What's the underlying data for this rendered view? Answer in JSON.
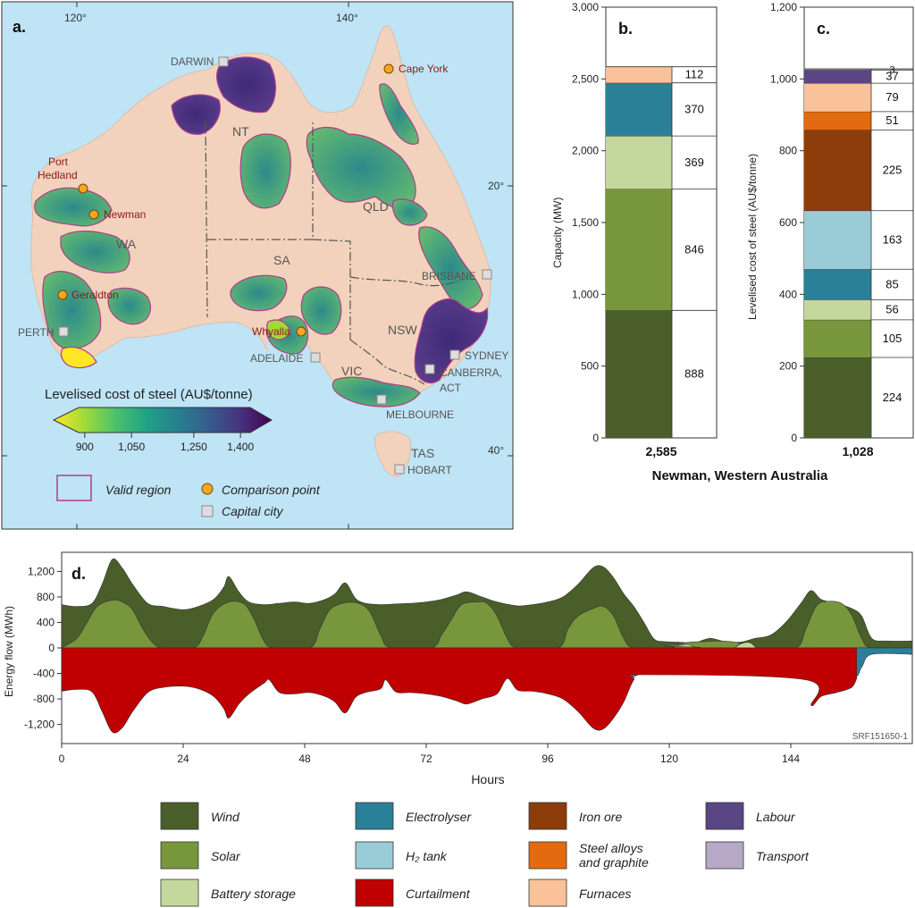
{
  "panel_a": {
    "panel_label": "a.",
    "lon_labels": [
      "120°",
      "140°"
    ],
    "lat_labels": [
      "20°",
      "40°"
    ],
    "states": [
      {
        "name": "NT"
      },
      {
        "name": "QLD"
      },
      {
        "name": "WA"
      },
      {
        "name": "SA"
      },
      {
        "name": "NSW"
      },
      {
        "name": "VIC"
      },
      {
        "name": "TAS"
      }
    ],
    "cities": [
      {
        "name": "DARWIN"
      },
      {
        "name": "BRISBANE"
      },
      {
        "name": "PERTH"
      },
      {
        "name": "ADELAIDE"
      },
      {
        "name": "SYDNEY"
      },
      {
        "name": "CANBERRA,"
      },
      {
        "name": "ACT"
      },
      {
        "name": "MELBOURNE"
      },
      {
        "name": "HOBART"
      }
    ],
    "comparison_points": [
      {
        "name": "Cape York"
      },
      {
        "name": "Port"
      },
      {
        "name": "Hedland"
      },
      {
        "name": "Newman"
      },
      {
        "name": "Geraldton"
      },
      {
        "name": "Whyalla"
      }
    ],
    "colorbar": {
      "title": "Levelised cost of steel (AU$/tonne)",
      "ticks": [
        "900",
        "1,050",
        "1,250",
        "1,400"
      ],
      "min": 800,
      "max": 1500,
      "colors": [
        "#fde725",
        "#a0da39",
        "#4ac16d",
        "#1fa187",
        "#277f8e",
        "#365c8d",
        "#46327e",
        "#440154"
      ]
    },
    "legend": {
      "valid_region": "Valid region",
      "comparison_point": "Comparison point",
      "capital_city": "Capital city"
    },
    "colors": {
      "ocean": "#bfe4f5",
      "land": "#f2d2bc",
      "valid": "#b03c8c",
      "point": "#f5a623",
      "city": "#dddddd"
    }
  },
  "panel_d_meta": {
    "panel_label": "d.",
    "ylabel": "Energy flow (MWh)",
    "xlabel": "Hours",
    "watermark": "SRF151650-1",
    "y_ticks": [
      "1,200",
      "800",
      "400",
      "0",
      "-400",
      "-800",
      "-1,200"
    ],
    "x_ticks": [
      "0",
      "24",
      "48",
      "72",
      "96",
      "120",
      "144"
    ]
  },
  "chart_data": [
    {
      "type": "bar",
      "panel_label": "b.",
      "ylabel": "Capacity (MW)",
      "ylim": [
        0,
        3000
      ],
      "y_ticks": [
        "0",
        "500",
        "1,000",
        "1,500",
        "2,000",
        "2,500",
        "3,000"
      ],
      "total_label": "2,585",
      "categories": [
        "Wind",
        "Solar",
        "Battery storage",
        "Electrolyser",
        "Furnaces"
      ],
      "values": [
        888,
        846,
        369,
        370,
        112
      ],
      "value_labels": [
        "888",
        "846",
        "369",
        "370",
        "112"
      ],
      "colors": [
        "#4a5e2a",
        "#78963c",
        "#c4d89e",
        "#2a8098",
        "#f9c29a"
      ]
    },
    {
      "type": "bar",
      "panel_label": "c.",
      "ylabel": "Levelised cost of steel (AU$/tonne)",
      "ylim": [
        0,
        1200
      ],
      "y_ticks": [
        "0",
        "200",
        "400",
        "600",
        "800",
        "1,000",
        "1,200"
      ],
      "total_label": "1,028",
      "categories": [
        "Wind",
        "Solar",
        "Battery storage",
        "Electrolyser",
        "H2 tank",
        "Iron ore",
        "Steel alloys and graphite",
        "Furnaces",
        "Labour",
        "Transport"
      ],
      "values": [
        224,
        105,
        56,
        85,
        163,
        225,
        51,
        79,
        37,
        3
      ],
      "value_labels": [
        "224",
        "105",
        "56",
        "85",
        "163",
        "225",
        "51",
        "79",
        "37",
        "3"
      ],
      "colors": [
        "#4a5e2a",
        "#78963c",
        "#c4d89e",
        "#2a8098",
        "#99ccd6",
        "#8c3d0a",
        "#e36a10",
        "#f9c29a",
        "#5a4585",
        "#b8a8c8"
      ]
    },
    {
      "type": "area",
      "xlim": [
        0,
        168
      ],
      "ylim": [
        -1500,
        1500
      ],
      "series": [
        {
          "name": "Wind",
          "color": "#4a5e2a",
          "points": [
            [
              0,
              680
            ],
            [
              3,
              650
            ],
            [
              6,
              700
            ],
            [
              8,
              1000
            ],
            [
              10,
              1390
            ],
            [
              12,
              1250
            ],
            [
              14,
              1000
            ],
            [
              17,
              700
            ],
            [
              20,
              650
            ],
            [
              24,
              600
            ],
            [
              27,
              650
            ],
            [
              30,
              760
            ],
            [
              32,
              950
            ],
            [
              33,
              1120
            ],
            [
              35,
              880
            ],
            [
              37,
              720
            ],
            [
              40,
              680
            ],
            [
              43,
              700
            ],
            [
              46,
              720
            ],
            [
              49,
              700
            ],
            [
              52,
              760
            ],
            [
              54,
              850
            ],
            [
              56,
              1020
            ],
            [
              58,
              780
            ],
            [
              60,
              700
            ],
            [
              63,
              680
            ],
            [
              66,
              690
            ],
            [
              69,
              700
            ],
            [
              72,
              720
            ],
            [
              75,
              760
            ],
            [
              78,
              830
            ],
            [
              80,
              880
            ],
            [
              83,
              800
            ],
            [
              86,
              720
            ],
            [
              90,
              660
            ],
            [
              93,
              680
            ],
            [
              96,
              720
            ],
            [
              99,
              800
            ],
            [
              102,
              1000
            ],
            [
              105,
              1260
            ],
            [
              107,
              1270
            ],
            [
              109,
              1100
            ],
            [
              111,
              850
            ],
            [
              113,
              650
            ],
            [
              115,
              400
            ],
            [
              117,
              140
            ],
            [
              119,
              100
            ],
            [
              122,
              90
            ],
            [
              125,
              80
            ],
            [
              128,
              150
            ],
            [
              131,
              100
            ],
            [
              134,
              90
            ],
            [
              137,
              150
            ],
            [
              140,
              200
            ],
            [
              143,
              400
            ],
            [
              146,
              700
            ],
            [
              148,
              900
            ],
            [
              150,
              760
            ],
            [
              153,
              700
            ],
            [
              156,
              620
            ],
            [
              158,
              500
            ],
            [
              160,
              150
            ],
            [
              163,
              110
            ],
            [
              168,
              110
            ]
          ]
        },
        {
          "name": "Solar",
          "color": "#78963c",
          "points": [
            [
              0,
              0
            ],
            [
              3,
              150
            ],
            [
              5,
              400
            ],
            [
              7,
              650
            ],
            [
              10,
              750
            ],
            [
              12,
              720
            ],
            [
              14,
              600
            ],
            [
              16,
              300
            ],
            [
              18,
              80
            ],
            [
              20,
              0
            ],
            [
              26,
              0
            ],
            [
              28,
              200
            ],
            [
              30,
              550
            ],
            [
              33,
              720
            ],
            [
              36,
              690
            ],
            [
              38,
              450
            ],
            [
              40,
              100
            ],
            [
              42,
              0
            ],
            [
              49,
              0
            ],
            [
              51,
              300
            ],
            [
              53,
              600
            ],
            [
              56,
              710
            ],
            [
              59,
              690
            ],
            [
              61,
              550
            ],
            [
              63,
              200
            ],
            [
              65,
              0
            ],
            [
              73,
              0
            ],
            [
              75,
              200
            ],
            [
              77,
              450
            ],
            [
              79,
              680
            ],
            [
              82,
              720
            ],
            [
              84,
              700
            ],
            [
              86,
              500
            ],
            [
              88,
              150
            ],
            [
              90,
              0
            ],
            [
              98,
              0
            ],
            [
              100,
              300
            ],
            [
              102,
              500
            ],
            [
              105,
              620
            ],
            [
              107,
              650
            ],
            [
              109,
              500
            ],
            [
              111,
              150
            ],
            [
              113,
              0
            ],
            [
              120,
              0
            ],
            [
              122,
              60
            ],
            [
              124,
              90
            ],
            [
              127,
              100
            ],
            [
              130,
              110
            ],
            [
              133,
              90
            ],
            [
              135,
              40
            ],
            [
              138,
              0
            ],
            [
              145,
              0
            ],
            [
              147,
              300
            ],
            [
              149,
              650
            ],
            [
              151,
              730
            ],
            [
              154,
              700
            ],
            [
              156,
              520
            ],
            [
              158,
              150
            ],
            [
              160,
              0
            ],
            [
              168,
              0
            ]
          ]
        },
        {
          "name": "Battery storage",
          "color": "#c4d89e",
          "points": [
            [
              0,
              0
            ],
            [
              117,
              0
            ],
            [
              119,
              30
            ],
            [
              122,
              40
            ],
            [
              124,
              50
            ],
            [
              127,
              -80
            ],
            [
              130,
              -90
            ],
            [
              132,
              -60
            ],
            [
              134,
              60
            ],
            [
              136,
              80
            ],
            [
              138,
              -50
            ],
            [
              141,
              -100
            ],
            [
              143,
              -40
            ],
            [
              145,
              0
            ],
            [
              168,
              0
            ]
          ]
        },
        {
          "name": "Furnaces",
          "color": "#f9c29a",
          "points": [
            [
              0,
              -80
            ],
            [
              168,
              -80
            ]
          ]
        },
        {
          "name": "Electrolyser",
          "color": "#2a8098",
          "points": [
            [
              0,
              -480
            ],
            [
              42,
              -480
            ],
            [
              44,
              -470
            ],
            [
              64,
              -480
            ],
            [
              90,
              -470
            ],
            [
              110,
              -480
            ],
            [
              113,
              -450
            ],
            [
              116,
              -320
            ],
            [
              118,
              -180
            ],
            [
              119,
              -100
            ],
            [
              145,
              -100
            ],
            [
              147,
              -470
            ],
            [
              156,
              -480
            ],
            [
              158,
              -300
            ],
            [
              160,
              -100
            ],
            [
              168,
              -100
            ]
          ]
        },
        {
          "name": "Curtailment",
          "color": "#c00000",
          "points": [
            [
              0,
              -680
            ],
            [
              3,
              -650
            ],
            [
              6,
              -690
            ],
            [
              8,
              -1000
            ],
            [
              10,
              -1320
            ],
            [
              12,
              -1250
            ],
            [
              14,
              -1000
            ],
            [
              17,
              -700
            ],
            [
              20,
              -620
            ],
            [
              24,
              -600
            ],
            [
              27,
              -640
            ],
            [
              30,
              -760
            ],
            [
              32,
              -950
            ],
            [
              33,
              -1100
            ],
            [
              35,
              -880
            ],
            [
              37,
              -720
            ],
            [
              40,
              -550
            ],
            [
              41,
              -500
            ],
            [
              43,
              -700
            ],
            [
              46,
              -720
            ],
            [
              49,
              -700
            ],
            [
              52,
              -760
            ],
            [
              54,
              -850
            ],
            [
              56,
              -1020
            ],
            [
              58,
              -780
            ],
            [
              60,
              -700
            ],
            [
              63,
              -640
            ],
            [
              64,
              -500
            ],
            [
              66,
              -690
            ],
            [
              69,
              -700
            ],
            [
              72,
              -720
            ],
            [
              75,
              -760
            ],
            [
              78,
              -830
            ],
            [
              80,
              -880
            ],
            [
              83,
              -800
            ],
            [
              86,
              -720
            ],
            [
              88,
              -480
            ],
            [
              90,
              -660
            ],
            [
              93,
              -680
            ],
            [
              96,
              -720
            ],
            [
              99,
              -800
            ],
            [
              102,
              -1000
            ],
            [
              105,
              -1260
            ],
            [
              107,
              -1270
            ],
            [
              109,
              -1100
            ],
            [
              111,
              -850
            ],
            [
              113,
              -500
            ],
            [
              115,
              -420
            ],
            [
              147,
              -500
            ],
            [
              148,
              -900
            ],
            [
              150,
              -760
            ],
            [
              153,
              -700
            ],
            [
              156,
              -620
            ],
            [
              157,
              -480
            ]
          ]
        }
      ]
    }
  ],
  "legend_items": [
    {
      "label": "Wind",
      "color": "#4a5e2a"
    },
    {
      "label": "Electrolyser",
      "color": "#2a8098"
    },
    {
      "label": "Iron ore",
      "color": "#8c3d0a"
    },
    {
      "label": "Labour",
      "color": "#5a4585"
    },
    {
      "label": "Solar",
      "color": "#78963c"
    },
    {
      "label": "H₂ tank",
      "color": "#99ccd6"
    },
    {
      "label": "Steel alloys",
      "label2": "and graphite",
      "color": "#e36a10"
    },
    {
      "label": "Transport",
      "color": "#b8a8c8"
    },
    {
      "label": "Battery storage",
      "color": "#c4d89e"
    },
    {
      "label": "Curtailment",
      "color": "#c00000"
    },
    {
      "label": "Furnaces",
      "color": "#f9c29a"
    }
  ],
  "shared_xlabel": "Newman, Western Australia"
}
